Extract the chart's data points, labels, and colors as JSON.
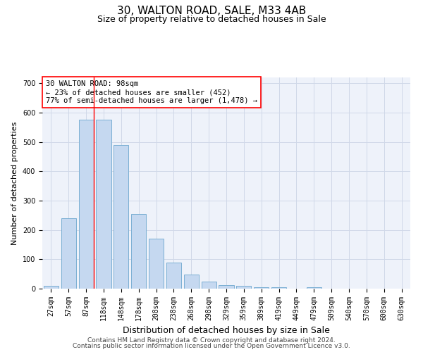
{
  "title": "30, WALTON ROAD, SALE, M33 4AB",
  "subtitle": "Size of property relative to detached houses in Sale",
  "xlabel": "Distribution of detached houses by size in Sale",
  "ylabel": "Number of detached properties",
  "bins": [
    "27sqm",
    "57sqm",
    "87sqm",
    "118sqm",
    "148sqm",
    "178sqm",
    "208sqm",
    "238sqm",
    "268sqm",
    "298sqm",
    "329sqm",
    "359sqm",
    "389sqm",
    "419sqm",
    "449sqm",
    "479sqm",
    "509sqm",
    "540sqm",
    "570sqm",
    "600sqm",
    "630sqm"
  ],
  "values": [
    10,
    240,
    575,
    575,
    490,
    255,
    170,
    90,
    47,
    23,
    12,
    10,
    5,
    5,
    0,
    5,
    0,
    0,
    0,
    0,
    0
  ],
  "bar_color": "#c5d8f0",
  "bar_edge_color": "#7bafd4",
  "grid_color": "#d0d8e8",
  "background_color": "#eef2fa",
  "annotation_text": "30 WALTON ROAD: 98sqm\n← 23% of detached houses are smaller (452)\n77% of semi-detached houses are larger (1,478) →",
  "annotation_box_color": "white",
  "annotation_box_edge_color": "red",
  "property_line_color": "red",
  "footer_line1": "Contains HM Land Registry data © Crown copyright and database right 2024.",
  "footer_line2": "Contains public sector information licensed under the Open Government Licence v3.0.",
  "ylim": [
    0,
    720
  ],
  "yticks": [
    0,
    100,
    200,
    300,
    400,
    500,
    600,
    700
  ],
  "title_fontsize": 11,
  "subtitle_fontsize": 9,
  "xlabel_fontsize": 9,
  "ylabel_fontsize": 8,
  "tick_fontsize": 7,
  "annotation_fontsize": 7.5,
  "footer_fontsize": 6.5
}
